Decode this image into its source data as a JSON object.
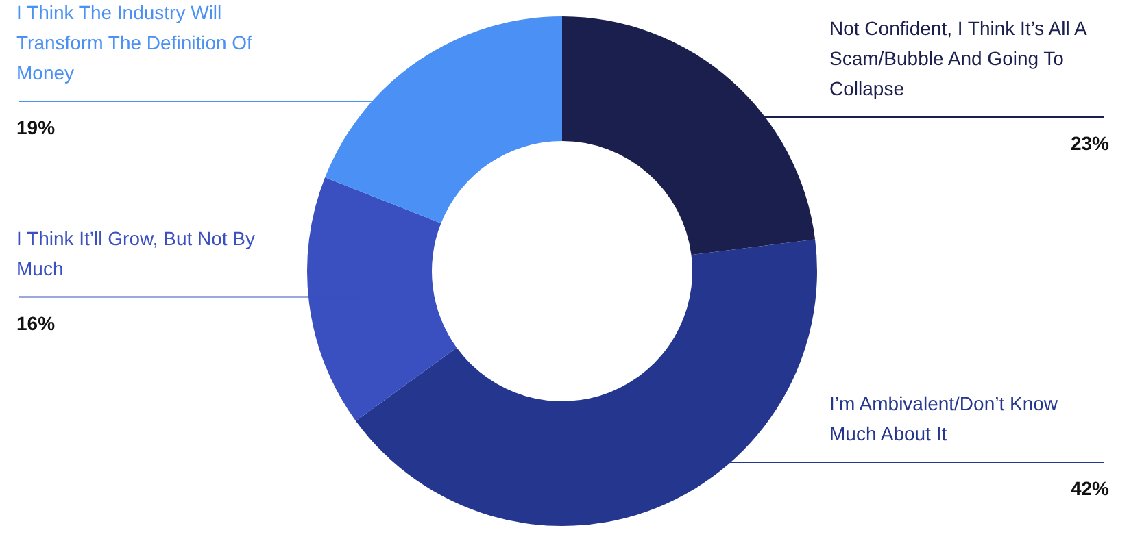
{
  "chart_data": {
    "type": "donut",
    "categories": [
      "Not Confident, I Think It’s All A Scam/Bubble And Going To Collapse",
      "I’m Ambivalent/Don’t Know Much About It",
      "I Think It’ll Grow, But Not By Much",
      "I Think The Industry Will Transform The Definition Of Money"
    ],
    "values": [
      23,
      42,
      16,
      19
    ],
    "colors": [
      "#1b1f4d",
      "#25368f",
      "#3a4fc0",
      "#4a90f5"
    ],
    "value_labels": [
      "23%",
      "42%",
      "16%",
      "19%"
    ],
    "legend": false
  }
}
